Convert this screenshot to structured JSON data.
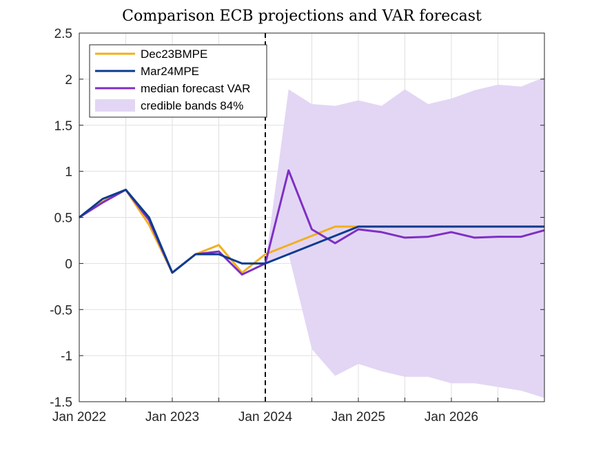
{
  "chart_data": {
    "type": "line",
    "title": "Comparison ECB projections and VAR forecast",
    "xlabel": "",
    "ylabel": "",
    "xlim": [
      0,
      20
    ],
    "ylim": [
      -1.5,
      2.5
    ],
    "yticks": [
      -1.5,
      -1,
      -0.5,
      0,
      0.5,
      1,
      1.5,
      2,
      2.5
    ],
    "ytick_labels": [
      "-1.5",
      "-1",
      "-0.5",
      "0",
      "0.5",
      "1",
      "1.5",
      "2",
      "2.5"
    ],
    "xticks": [
      0,
      4,
      8,
      12,
      16
    ],
    "xtick_labels": [
      "Jan 2022",
      "Jan 2023",
      "Jan 2024",
      "Jan 2025",
      "Jan 2026"
    ],
    "x_minor_grid": [
      0,
      2,
      4,
      6,
      8,
      10,
      12,
      14,
      16,
      18,
      20
    ],
    "grid": true,
    "legend_position": "top-left",
    "vertical_line": {
      "x": 8,
      "style": "dashed",
      "color": "#000000"
    },
    "series": [
      {
        "name": "Dec23BMPE",
        "color": "#F2AF1C",
        "x": [
          0,
          1,
          2,
          3,
          4,
          5,
          6,
          7,
          8,
          9,
          10,
          11,
          12,
          13,
          14,
          15,
          16,
          17,
          18,
          19,
          20
        ],
        "values": [
          0.5,
          0.67,
          0.8,
          0.42,
          -0.1,
          0.1,
          0.2,
          -0.1,
          0.1,
          0.2,
          0.3,
          0.4,
          0.4,
          0.4,
          0.4,
          0.4,
          0.4,
          0.4,
          0.4,
          0.4,
          0.4
        ]
      },
      {
        "name": "Mar24MPE",
        "color": "#0A3B8F",
        "x": [
          0,
          1,
          2,
          3,
          4,
          5,
          6,
          7,
          8,
          9,
          10,
          11,
          12,
          13,
          14,
          15,
          16,
          17,
          18,
          19,
          20
        ],
        "values": [
          0.5,
          0.7,
          0.8,
          0.5,
          -0.1,
          0.1,
          0.1,
          0.0,
          0.0,
          0.1,
          0.2,
          0.3,
          0.4,
          0.4,
          0.4,
          0.4,
          0.4,
          0.4,
          0.4,
          0.4,
          0.4
        ]
      },
      {
        "name": "median forecast VAR",
        "color": "#7E2FC4",
        "x": [
          0,
          1,
          2,
          3,
          4,
          5,
          6,
          7,
          8,
          9,
          10,
          11,
          12,
          13,
          14,
          15,
          16,
          17,
          18,
          19,
          20
        ],
        "values": [
          0.5,
          0.66,
          0.8,
          0.47,
          -0.1,
          0.1,
          0.13,
          -0.12,
          0.0,
          1.01,
          0.37,
          0.22,
          0.37,
          0.34,
          0.28,
          0.29,
          0.34,
          0.28,
          0.29,
          0.29,
          0.36
        ]
      }
    ],
    "band": {
      "name": "credible bands 84%",
      "color": "#E3D6F4",
      "x": [
        8,
        9,
        10,
        11,
        12,
        13,
        14,
        15,
        16,
        17,
        18,
        19,
        20
      ],
      "upper": [
        0.0,
        1.89,
        1.73,
        1.71,
        1.77,
        1.71,
        1.89,
        1.73,
        1.79,
        1.88,
        1.94,
        1.92,
        2.02
      ],
      "lower": [
        0.0,
        0.1,
        -0.93,
        -1.22,
        -1.09,
        -1.17,
        -1.23,
        -1.23,
        -1.3,
        -1.3,
        -1.34,
        -1.38,
        -1.46
      ]
    }
  }
}
